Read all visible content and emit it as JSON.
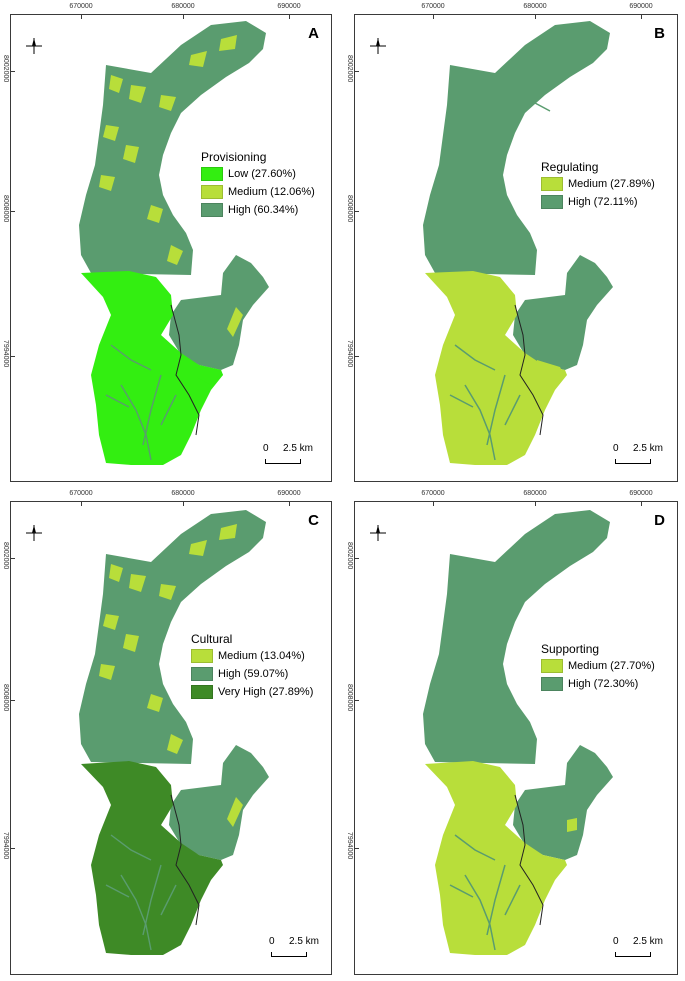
{
  "ticks": {
    "x": [
      "670000",
      "680000",
      "690000"
    ],
    "y": [
      "8002000",
      "8008000",
      "7994000"
    ]
  },
  "colors": {
    "low": "#33ee11",
    "medium": "#b8de3a",
    "high": "#5a9c6f",
    "very_high": "#3e8a26",
    "stream": "#6aa884"
  },
  "icons": {
    "north": "north-arrow-icon"
  },
  "panels": [
    {
      "letter": "A",
      "legend_title": "Provisioning",
      "legend": [
        {
          "label": "Low (27.60%)",
          "color": "#33ee11"
        },
        {
          "label": "Medium (12.06%)",
          "color": "#b8de3a"
        },
        {
          "label": "High (60.34%)",
          "color": "#5a9c6f"
        }
      ],
      "scale_zero": "0",
      "scale_label": "2.5 km"
    },
    {
      "letter": "B",
      "legend_title": "Regulating",
      "legend": [
        {
          "label": "Medium (27.89%)",
          "color": "#b8de3a"
        },
        {
          "label": "High (72.11%)",
          "color": "#5a9c6f"
        }
      ],
      "scale_zero": "0",
      "scale_label": "2.5 km"
    },
    {
      "letter": "C",
      "legend_title": "Cultural",
      "legend": [
        {
          "label": "Medium (13.04%)",
          "color": "#b8de3a"
        },
        {
          "label": "High (59.07%)",
          "color": "#5a9c6f"
        },
        {
          "label": "Very High (27.89%)",
          "color": "#3e8a26"
        }
      ],
      "scale_zero": "0",
      "scale_label": "2.5 km"
    },
    {
      "letter": "D",
      "legend_title": "Supporting",
      "legend": [
        {
          "label": "Medium (27.70%)",
          "color": "#b8de3a"
        },
        {
          "label": "High (72.30%)",
          "color": "#5a9c6f"
        }
      ],
      "scale_zero": "0",
      "scale_label": "2.5 km"
    }
  ]
}
